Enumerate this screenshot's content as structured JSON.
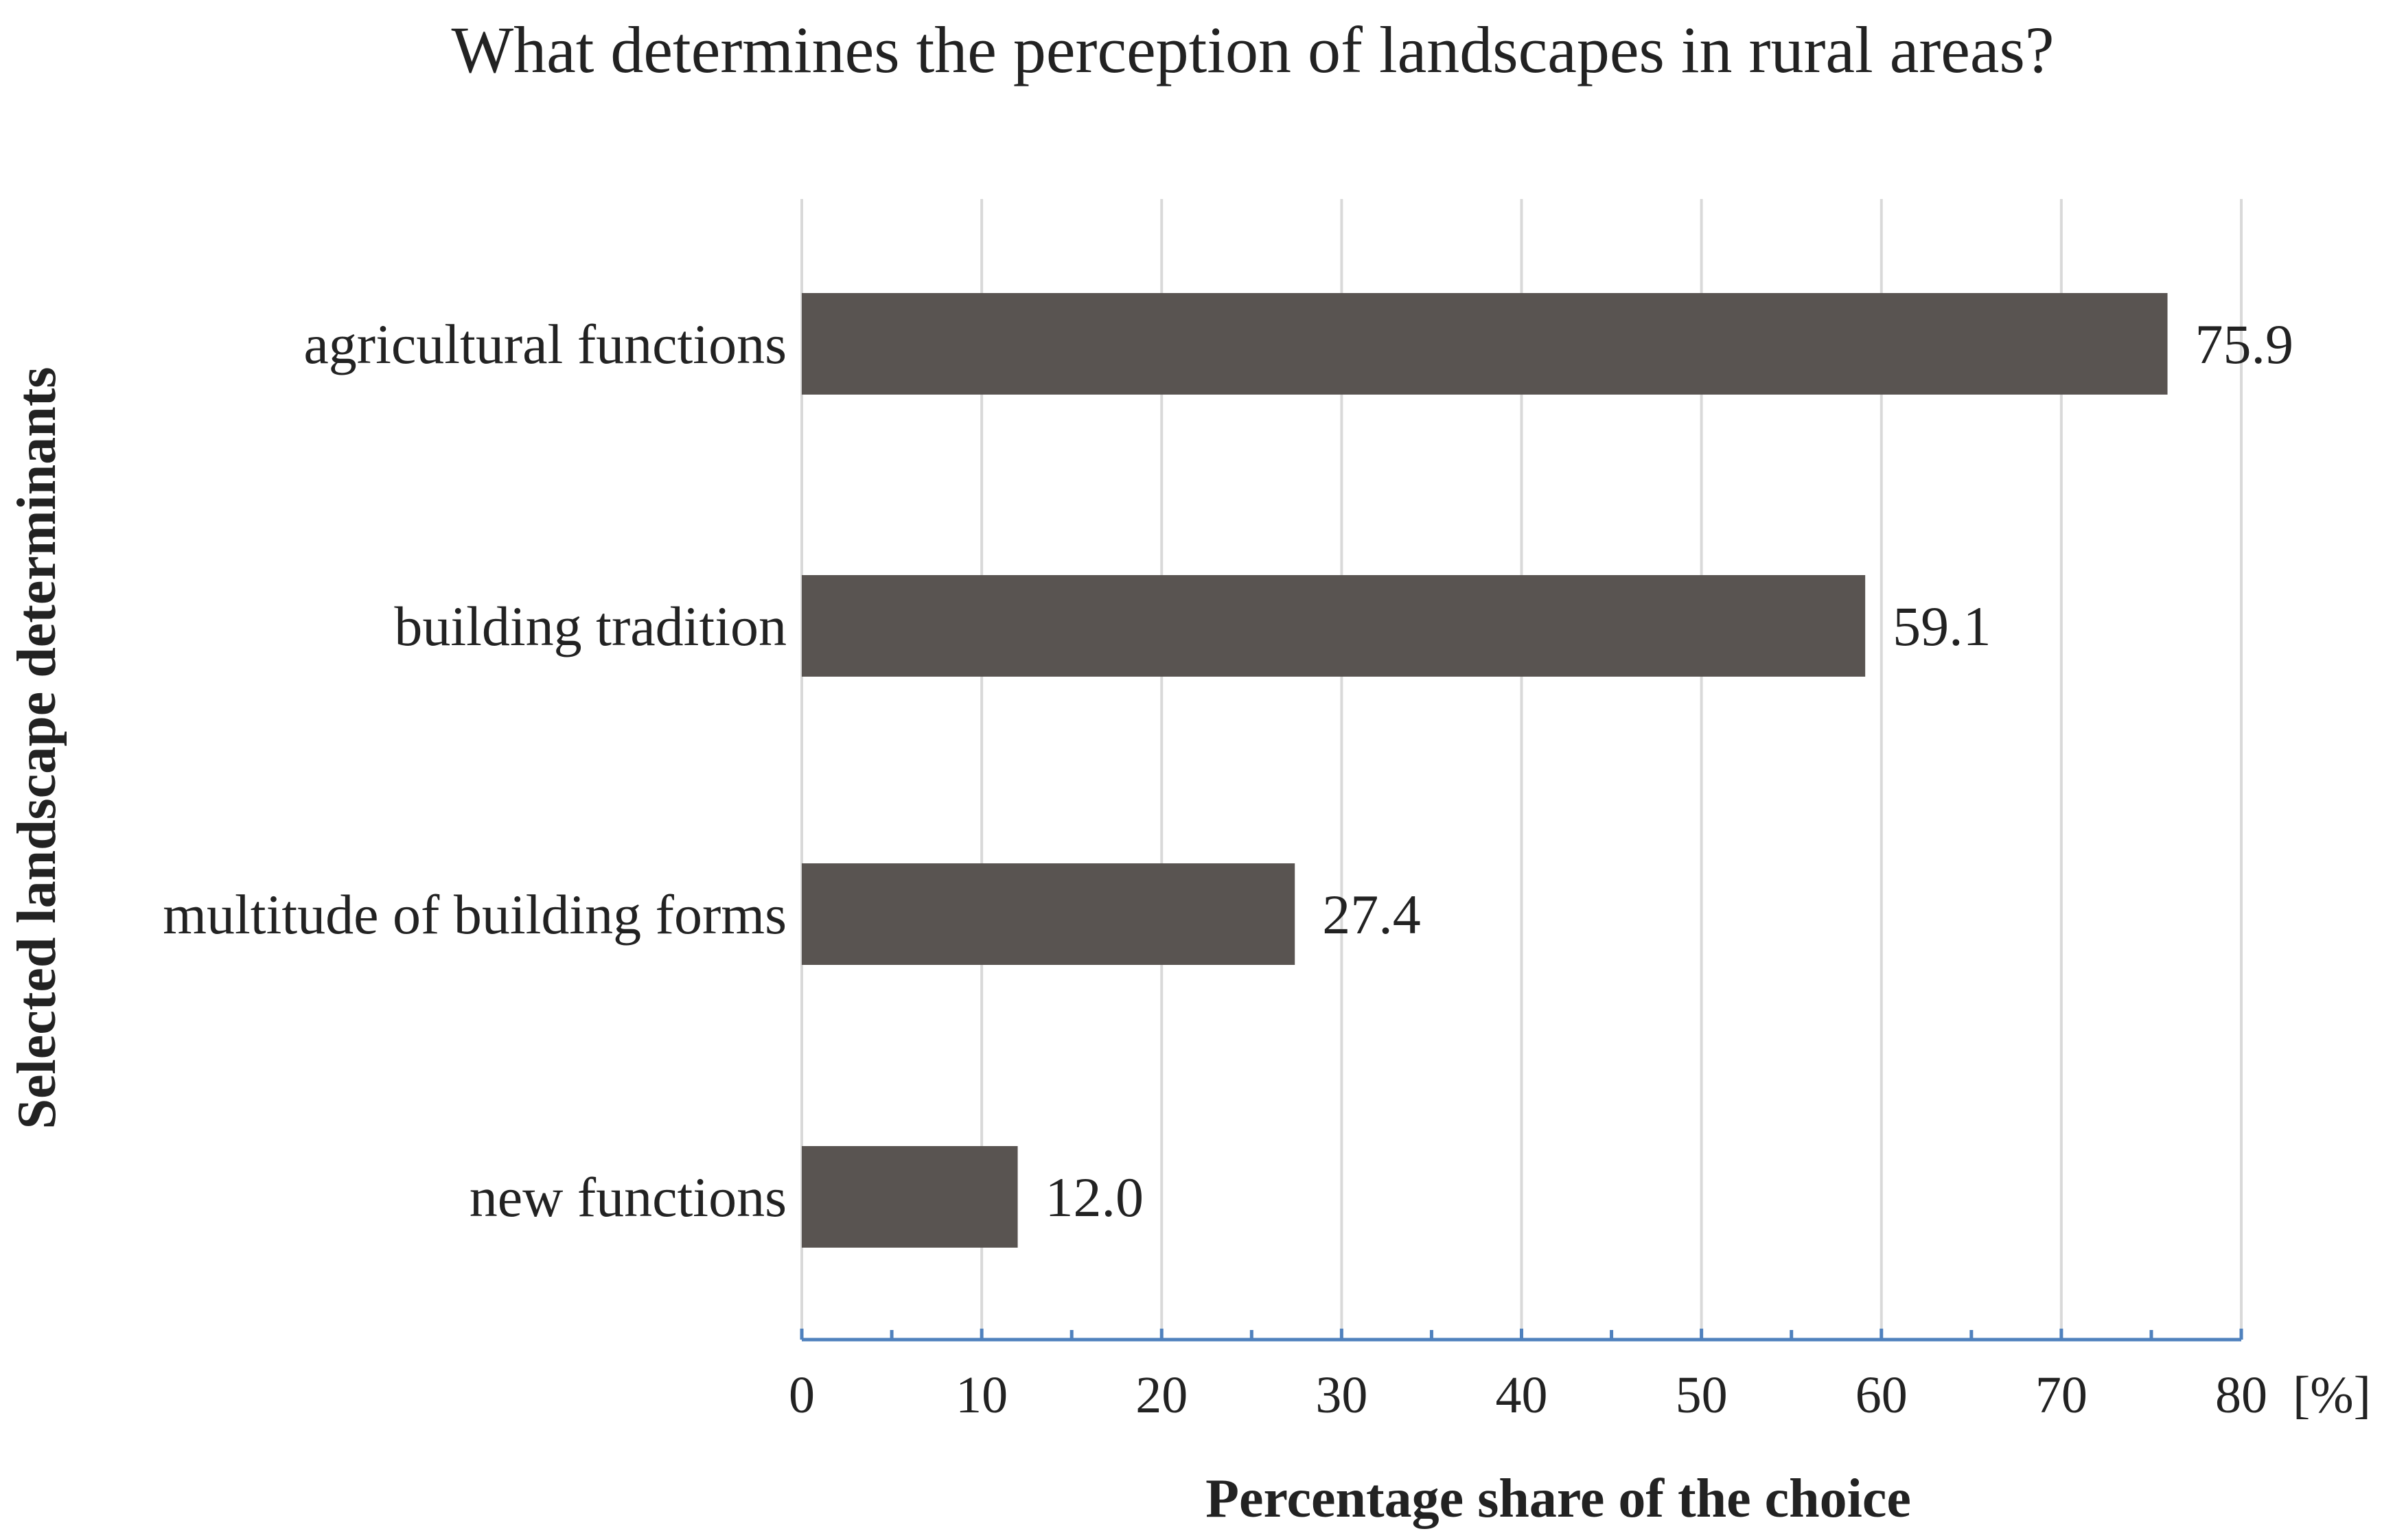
{
  "chart_data": {
    "type": "bar",
    "orientation": "horizontal",
    "title": "What determines the perception of landscapes in rural areas?",
    "xlabel": "Percentage share of the choice",
    "ylabel": "Selected landscape determinants",
    "x_unit": "[%]",
    "categories": [
      "agricultural functions",
      "building tradition",
      "multitude of building forms",
      "new functions"
    ],
    "values": [
      75.9,
      59.1,
      27.4,
      12.0
    ],
    "value_labels": [
      "75.9",
      "59.1",
      "27.4",
      "12.0"
    ],
    "xlim": [
      0,
      80
    ],
    "x_ticks": [
      0,
      10,
      20,
      30,
      40,
      50,
      60,
      70,
      80
    ],
    "x_tick_labels": [
      "0",
      "10",
      "20",
      "30",
      "40",
      "50",
      "60",
      "70",
      "80"
    ],
    "grid": true,
    "legend": "none",
    "colors": {
      "bar": "#595451",
      "grid": "#d9d9d9",
      "axis": "#4f81bd",
      "text": "#222222"
    }
  }
}
